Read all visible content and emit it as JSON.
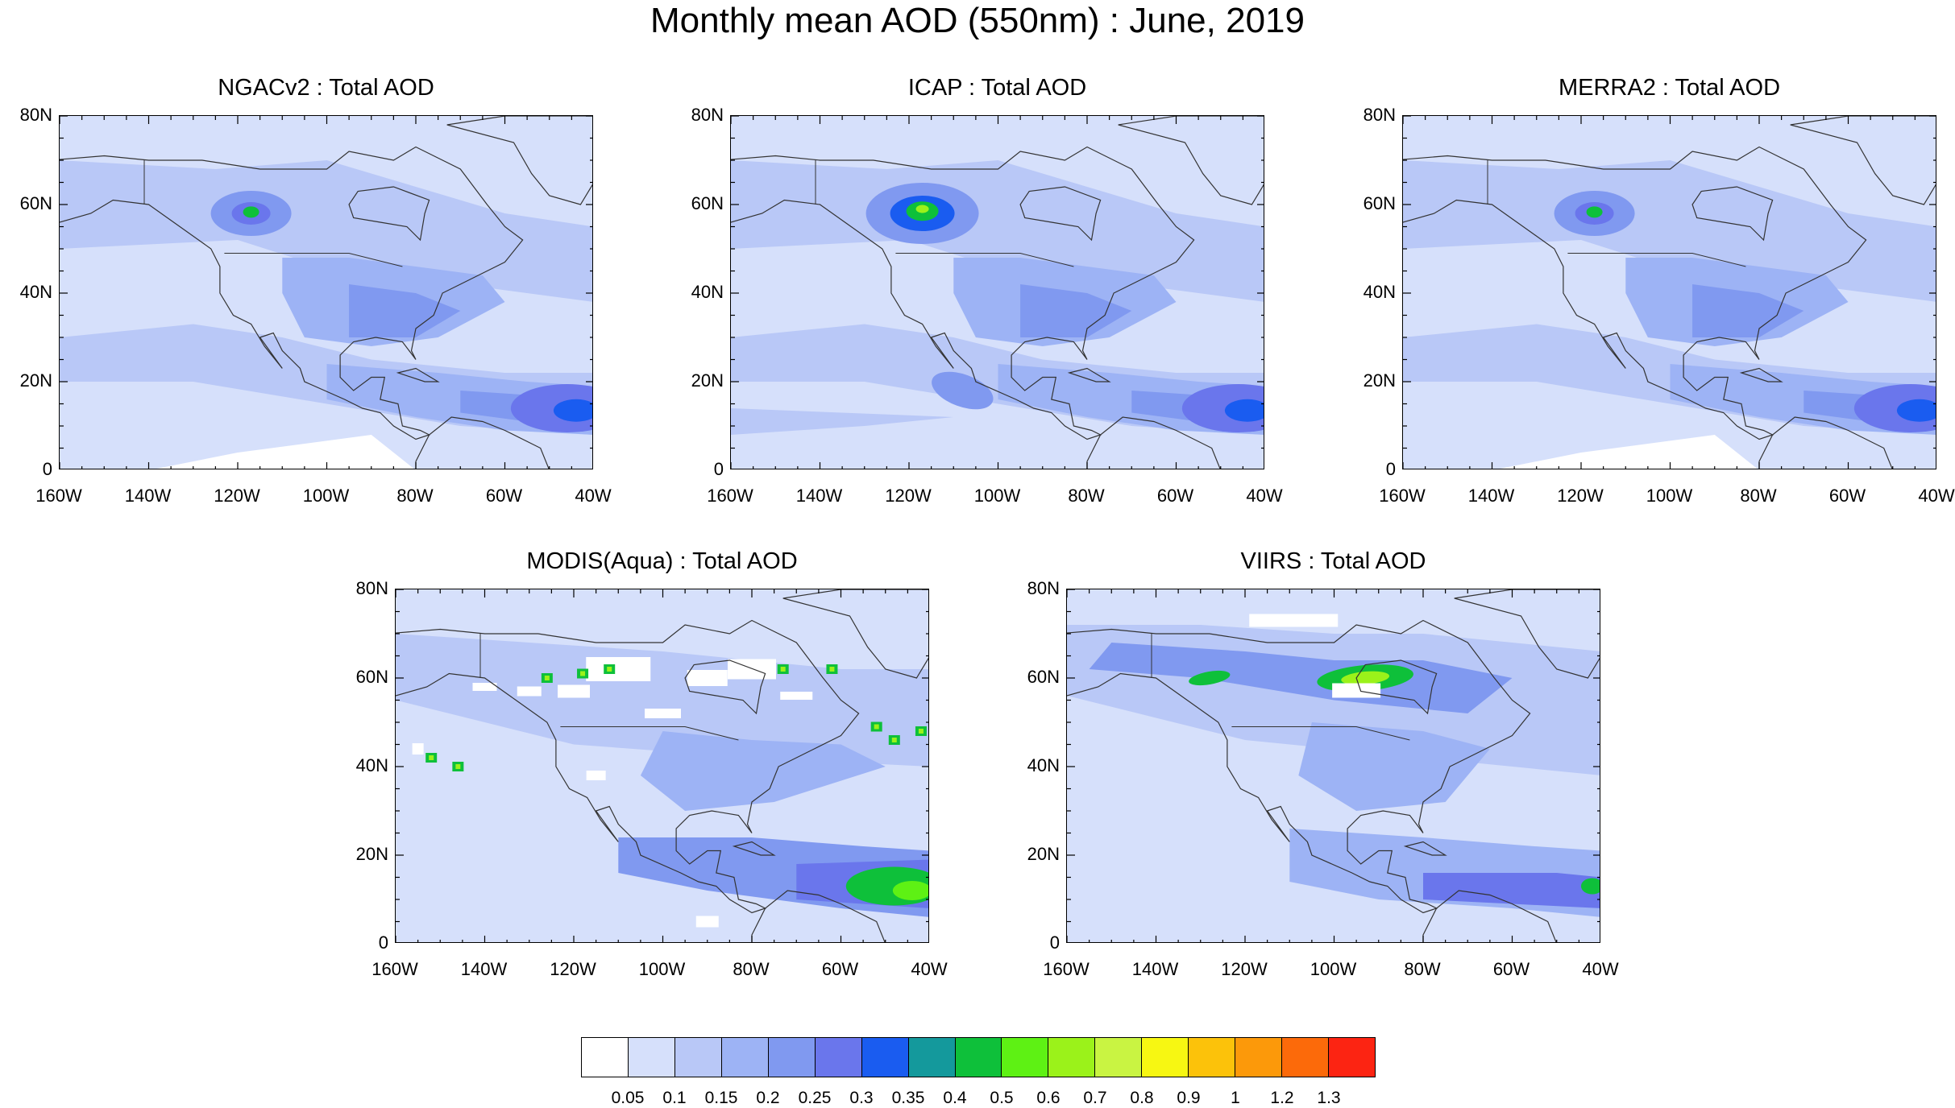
{
  "title": "Monthly mean AOD (550nm) : June, 2019",
  "panels": [
    {
      "id": "ngacv2",
      "title": "NGACv2 : Total AOD",
      "style": "model"
    },
    {
      "id": "icap",
      "title": "ICAP : Total AOD",
      "style": "model_strong"
    },
    {
      "id": "merra2",
      "title": "MERRA2 : Total AOD",
      "style": "model"
    },
    {
      "id": "modis",
      "title": "MODIS(Aqua) : Total AOD",
      "style": "satellite_blocky"
    },
    {
      "id": "viirs",
      "title": "VIIRS : Total AOD",
      "style": "satellite_fine"
    }
  ],
  "axes": {
    "lat_labels": [
      "80N",
      "60N",
      "40N",
      "20N",
      "0"
    ],
    "lon_labels": [
      "160W",
      "140W",
      "120W",
      "100W",
      "80W",
      "60W",
      "40W"
    ],
    "lat_range": [
      0,
      80
    ],
    "lon_range": [
      -160,
      -40
    ]
  },
  "colorbar": {
    "labels": [
      "0.05",
      "0.1",
      "0.15",
      "0.2",
      "0.25",
      "0.3",
      "0.35",
      "0.4",
      "0.5",
      "0.6",
      "0.7",
      "0.8",
      "0.9",
      "1",
      "1.2",
      "1.3"
    ],
    "colors": [
      "#ffffff",
      "#d6e0fb",
      "#b9c8f7",
      "#9db3f5",
      "#8099f0",
      "#6a76ec",
      "#1a5cf0",
      "#14999c",
      "#0ec03a",
      "#5ef114",
      "#9bf21a",
      "#c9f442",
      "#f7f712",
      "#fcc20a",
      "#fc990a",
      "#fc6a0a",
      "#fc2412"
    ]
  }
}
